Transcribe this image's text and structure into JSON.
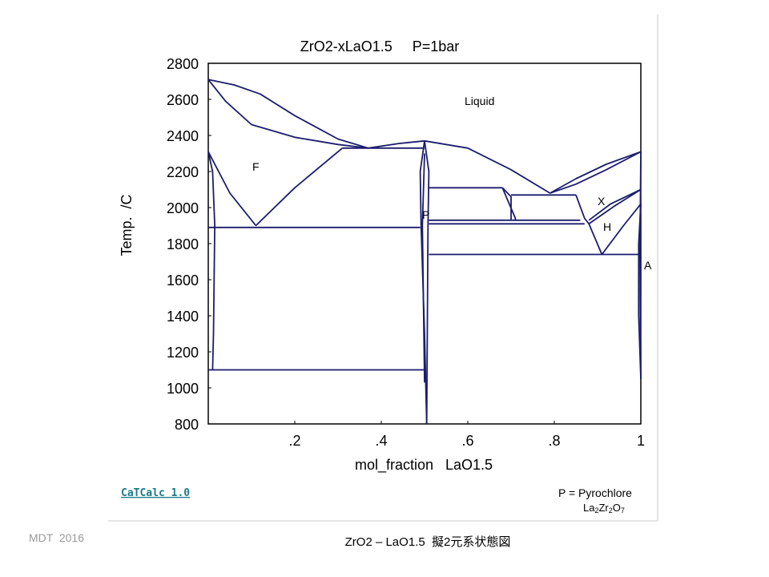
{
  "title": "ZrO2-xLaO1.5     P=1bar",
  "axes": {
    "ylabel": "Temp.  /C",
    "xlabel": "mol_fraction   LaO1.5",
    "y_ticks": [
      "2800",
      "2600",
      "2400",
      "2200",
      "2000",
      "1800",
      "1600",
      "1400",
      "1200",
      "1000",
      "800"
    ],
    "x_ticks": [
      ".2",
      ".4",
      ".6",
      ".8",
      "1"
    ],
    "x_range": [
      0,
      1
    ],
    "y_range": [
      800,
      2800
    ]
  },
  "phase_labels": {
    "liquid": "Liquid",
    "f": "F",
    "p": "P",
    "x": "X",
    "h": "H",
    "a": "A"
  },
  "footer": {
    "software_link": "CaTCalc 1.0",
    "legend_line1": "P = Pyrochlore",
    "formula": {
      "base1": "La",
      "sub1": "2",
      "base2": "Zr",
      "sub2": "2",
      "base3": "O",
      "sub3": "7"
    },
    "credit": "MDT  2016",
    "caption": "ZrO2 – LaO1.5  擬2元系状態図"
  },
  "colors": {
    "line": "#1c1c6e",
    "axis": "#000000",
    "link": "#1a7a8a",
    "frame": "#c8c8c8"
  },
  "chart_data": {
    "type": "phase-diagram",
    "xlim": [
      0,
      1
    ],
    "ylim": [
      800,
      2800
    ],
    "boundaries": [
      {
        "name": "liquidus-left-upper",
        "x": [
          0,
          0.06,
          0.12,
          0.2,
          0.3,
          0.37
        ],
        "y": [
          2710,
          2680,
          2630,
          2510,
          2380,
          2330
        ]
      },
      {
        "name": "solidus-left-upper",
        "x": [
          0,
          0.04,
          0.1,
          0.2,
          0.3,
          0.37
        ],
        "y": [
          2710,
          2590,
          2460,
          2390,
          2350,
          2330
        ]
      },
      {
        "name": "peritectic-line-2330",
        "x": [
          0.31,
          0.5
        ],
        "y": [
          2330,
          2330
        ]
      },
      {
        "name": "liquidus-to-pyrochlore",
        "x": [
          0.37,
          0.44,
          0.5
        ],
        "y": [
          2330,
          2355,
          2370
        ]
      },
      {
        "name": "liquidus-to-eutectic",
        "x": [
          0.5,
          0.6,
          0.7,
          0.79
        ],
        "y": [
          2370,
          2330,
          2210,
          2080
        ]
      },
      {
        "name": "liquidus-right",
        "x": [
          0.79,
          0.85,
          0.92,
          1.0
        ],
        "y": [
          2080,
          2160,
          2240,
          2310
        ]
      },
      {
        "name": "liquidus-right-lower",
        "x": [
          0.79,
          0.85,
          0.92,
          1.0
        ],
        "y": [
          2080,
          2130,
          2210,
          2310
        ]
      },
      {
        "name": "tetragonal-to-F-left",
        "x": [
          0,
          0.05,
          0.11
        ],
        "y": [
          2310,
          2080,
          1900
        ]
      },
      {
        "name": "F-to-pyrochlore",
        "x": [
          0.11,
          0.2,
          0.31
        ],
        "y": [
          1900,
          2110,
          2330
        ]
      },
      {
        "name": "eutectoid-line-1890",
        "x": [
          0,
          0.49
        ],
        "y": [
          1890,
          1890
        ]
      },
      {
        "name": "monoclinic-line-1100",
        "x": [
          0,
          0.5
        ],
        "y": [
          1100,
          1100
        ]
      },
      {
        "name": "zro2-solvus-upper",
        "x": [
          0,
          0.01,
          0.015,
          0.012,
          0.01
        ],
        "y": [
          2310,
          2200,
          1900,
          1300,
          1100
        ]
      },
      {
        "name": "pyrochlore-left",
        "x": [
          0.5,
          0.49,
          0.492,
          0.5,
          0.505
        ],
        "y": [
          2370,
          2200,
          1900,
          1300,
          800
        ]
      },
      {
        "name": "pyrochlore-right",
        "x": [
          0.5,
          0.51,
          0.508,
          0.505
        ],
        "y": [
          2370,
          2200,
          1900,
          800
        ]
      },
      {
        "name": "pyrochlore-inner",
        "x": [
          0.5,
          0.495,
          0.5
        ],
        "y": [
          2300,
          1900,
          1030
        ]
      },
      {
        "name": "line-2110",
        "x": [
          0.51,
          0.68
        ],
        "y": [
          2110,
          2110
        ]
      },
      {
        "name": "line-2070",
        "x": [
          0.7,
          0.85
        ],
        "y": [
          2070,
          2070
        ]
      },
      {
        "name": "line-1930",
        "x": [
          0.51,
          0.86
        ],
        "y": [
          1930,
          1930
        ]
      },
      {
        "name": "line-1910",
        "x": [
          0.51,
          0.87
        ],
        "y": [
          1910,
          1910
        ]
      },
      {
        "name": "line-1740",
        "x": [
          0.51,
          1.0
        ],
        "y": [
          1740,
          1740
        ]
      },
      {
        "name": "step-0.68-0.7",
        "x": [
          0.68,
          0.7,
          0.7
        ],
        "y": [
          2110,
          2060,
          1930
        ]
      },
      {
        "name": "step-0.68-0.71",
        "x": [
          0.68,
          0.71,
          0.71
        ],
        "y": [
          2110,
          1940,
          1930
        ]
      },
      {
        "name": "X-H-left",
        "x": [
          0.85,
          0.87,
          0.88
        ],
        "y": [
          2070,
          1940,
          1910
        ]
      },
      {
        "name": "X-boundary",
        "x": [
          0.88,
          0.94,
          1.0
        ],
        "y": [
          1910,
          2010,
          2100
        ]
      },
      {
        "name": "X-boundary-2",
        "x": [
          0.88,
          0.93,
          1.0
        ],
        "y": [
          1930,
          2020,
          2100
        ]
      },
      {
        "name": "H-left",
        "x": [
          0.88,
          0.91
        ],
        "y": [
          1910,
          1740
        ]
      },
      {
        "name": "H-right",
        "x": [
          0.91,
          0.96,
          1.0
        ],
        "y": [
          1740,
          1900,
          2020
        ]
      },
      {
        "name": "A-boundary",
        "x": [
          1.0,
          0.995,
          0.995,
          1.0
        ],
        "y": [
          2020,
          1800,
          1400,
          1050
        ]
      },
      {
        "name": "A-boundary-2",
        "x": [
          1.0,
          0.998,
          1.0
        ],
        "y": [
          2310,
          1750,
          1050
        ]
      }
    ]
  }
}
